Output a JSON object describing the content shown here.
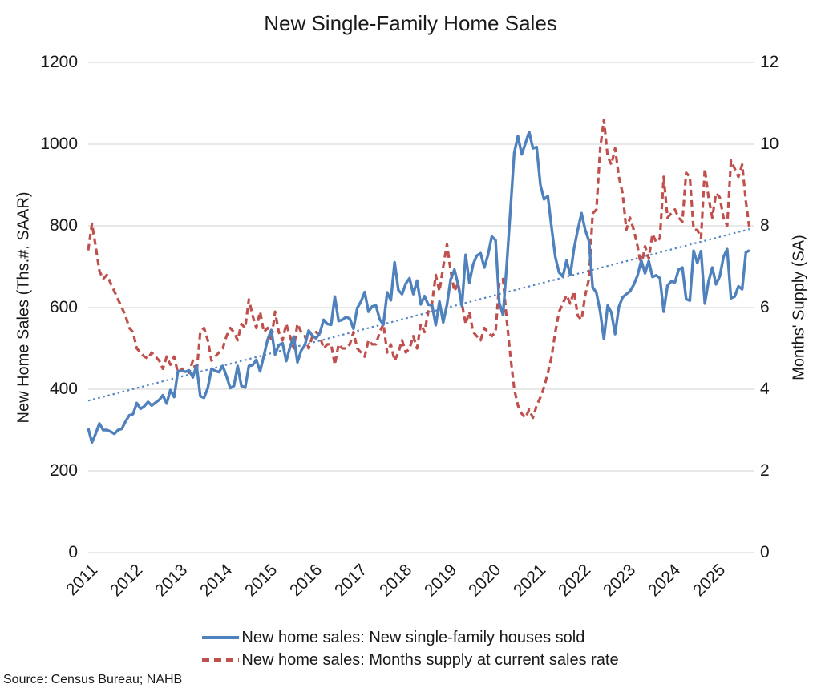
{
  "title": "New Single-Family Home Sales",
  "source": "Source: Census Bureau; NAHB",
  "colors": {
    "sales_line": "#4F81BD",
    "supply_line": "#C0504D",
    "trend_line": "#5585C2",
    "gridline": "#D9D9D9",
    "text": "#1A1A1A"
  },
  "left_axis": {
    "label": "New Home Sales (Ths.#, SAAR)",
    "min": 0,
    "max": 1200,
    "ticks": [
      0,
      200,
      400,
      600,
      800,
      1000,
      1200
    ]
  },
  "right_axis": {
    "label": "Months' Supply (SA)",
    "min": 0,
    "max": 12,
    "ticks": [
      0,
      2,
      4,
      6,
      8,
      10,
      12
    ]
  },
  "x_axis": {
    "year_ticks": [
      "2011",
      "2012",
      "2013",
      "2014",
      "2015",
      "2016",
      "2017",
      "2018",
      "2019",
      "2020",
      "2021",
      "2022",
      "2023",
      "2024",
      "2025"
    ]
  },
  "legend": [
    {
      "label": "New home sales: New single-family houses sold",
      "style": "solid",
      "color": "#4F81BD"
    },
    {
      "label": "New home sales: Months supply at current sales rate",
      "style": "dashed",
      "color": "#C0504D"
    }
  ],
  "chart_data": {
    "type": "line",
    "title": "New Single-Family Home Sales",
    "frequency": "monthly",
    "x_start": "2011-01",
    "x_end": "2025-10",
    "n_points": 178,
    "grid": "horizontal-only",
    "legend_position": "bottom",
    "series": [
      {
        "name": "New home sales: New single-family houses sold",
        "axis": "left",
        "units": "Ths.#, SAAR",
        "style": "solid",
        "color": "#4F81BD",
        "values": [
          304,
          270,
          291,
          316,
          300,
          300,
          296,
          291,
          300,
          303,
          321,
          336,
          339,
          366,
          352,
          358,
          369,
          360,
          367,
          374,
          385,
          365,
          398,
          381,
          444,
          445,
          443,
          446,
          429,
          459,
          383,
          379,
          403,
          450,
          445,
          442,
          457,
          432,
          403,
          408,
          457,
          408,
          404,
          457,
          459,
          472,
          444,
          482,
          521,
          545,
          485,
          508,
          513,
          469,
          503,
          529,
          466,
          495,
          508,
          544,
          531,
          525,
          538,
          570,
          560,
          558,
          627,
          567,
          570,
          577,
          573,
          548,
          599,
          615,
          638,
          590,
          603,
          605,
          571,
          558,
          637,
          618,
          711,
          643,
          633,
          659,
          672,
          633,
          666,
          608,
          628,
          607,
          607,
          557,
          615,
          564,
          607,
          669,
          693,
          656,
          604,
          729,
          661,
          706,
          727,
          733,
          698,
          729,
          774,
          765,
          612,
          582,
          704,
          840,
          979,
          1020,
          975,
          1002,
          1030,
          990,
          993,
          900,
          865,
          873,
          795,
          724,
          686,
          676,
          715,
          680,
          744,
          790,
          831,
          790,
          763,
          650,
          636,
          590,
          523,
          605,
          588,
          535,
          602,
          625,
          633,
          640,
          656,
          679,
          715,
          684,
          714,
          675,
          679,
          672,
          590,
          654,
          664,
          662,
          693,
          698,
          621,
          617,
          739,
          709,
          738,
          610,
          664,
          698,
          657,
          676,
          724,
          743,
          623,
          627,
          652,
          645,
          735,
          740
        ]
      },
      {
        "name": "New home sales: Months supply at current sales rate",
        "axis": "right",
        "units": "months, SA",
        "style": "dashed",
        "color": "#C0504D",
        "values": [
          7.4,
          8.05,
          7.5,
          6.9,
          6.7,
          6.8,
          6.6,
          6.4,
          6.2,
          6.0,
          5.8,
          5.5,
          5.4,
          5.0,
          4.9,
          4.8,
          4.75,
          4.9,
          4.8,
          4.7,
          4.5,
          4.8,
          4.6,
          4.8,
          4.4,
          4.5,
          4.5,
          4.4,
          4.7,
          4.4,
          5.4,
          5.5,
          5.2,
          4.7,
          4.8,
          4.9,
          5.0,
          5.3,
          5.5,
          5.4,
          5.2,
          5.6,
          5.5,
          6.2,
          5.8,
          5.5,
          5.9,
          5.4,
          5.5,
          5.2,
          5.9,
          5.4,
          5.2,
          5.6,
          5.3,
          5.0,
          5.6,
          5.4,
          5.3,
          5.0,
          5.3,
          5.4,
          5.3,
          5.0,
          5.1,
          5.1,
          4.6,
          5.1,
          5.0,
          5.0,
          5.1,
          5.4,
          5.0,
          4.9,
          4.8,
          5.2,
          5.1,
          5.1,
          5.4,
          5.6,
          4.9,
          5.1,
          4.7,
          4.9,
          5.2,
          4.9,
          5.0,
          5.3,
          5.0,
          5.6,
          5.4,
          5.9,
          6.1,
          6.8,
          6.4,
          7.0,
          7.55,
          6.9,
          6.4,
          6.6,
          6.1,
          5.6,
          5.9,
          5.4,
          5.3,
          5.2,
          5.5,
          5.4,
          5.3,
          5.4,
          6.6,
          6.7,
          5.7,
          4.8,
          4.0,
          3.6,
          3.4,
          3.3,
          3.5,
          3.3,
          3.6,
          3.8,
          4.05,
          4.4,
          4.8,
          5.4,
          5.9,
          6.1,
          6.3,
          6.1,
          6.4,
          5.8,
          5.7,
          6.3,
          6.7,
          8.3,
          8.4,
          9.9,
          10.6,
          9.7,
          9.5,
          9.9,
          9.2,
          8.8,
          7.9,
          8.2,
          7.9,
          7.5,
          7.0,
          7.5,
          7.2,
          7.8,
          7.6,
          7.7,
          9.2,
          8.2,
          8.3,
          8.4,
          8.2,
          8.1,
          9.3,
          9.2,
          7.9,
          7.9,
          7.7,
          9.4,
          8.7,
          8.2,
          8.8,
          8.7,
          8.2,
          8.0,
          9.6,
          9.4,
          9.2,
          9.5,
          8.6,
          7.9
        ]
      },
      {
        "name": "Linear trend of new home sales",
        "axis": "left",
        "style": "dotted",
        "color": "#5585C2",
        "endpoints": [
          372,
          792
        ]
      }
    ]
  }
}
